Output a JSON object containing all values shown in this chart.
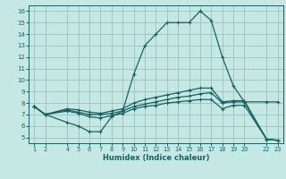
{
  "xlabel": "Humidex (Indice chaleur)",
  "bg_color": "#c5e8e5",
  "grid_color": "#9ec8c5",
  "line_color": "#1a6060",
  "xlim": [
    0.5,
    23.5
  ],
  "ylim": [
    4.5,
    16.5
  ],
  "xticks": [
    1,
    2,
    4,
    5,
    6,
    7,
    8,
    9,
    10,
    11,
    12,
    13,
    14,
    15,
    16,
    17,
    18,
    19,
    20,
    22,
    23
  ],
  "yticks": [
    5,
    6,
    7,
    8,
    9,
    10,
    11,
    12,
    13,
    14,
    15,
    16
  ],
  "line1_x": [
    1,
    2,
    4,
    5,
    6,
    7,
    8,
    9,
    10,
    11,
    12,
    13,
    14,
    15,
    16,
    17,
    18,
    19,
    20,
    22,
    23
  ],
  "line1_y": [
    7.7,
    7.0,
    6.3,
    6.0,
    5.5,
    5.5,
    6.8,
    7.3,
    10.5,
    13.0,
    14.0,
    15.0,
    15.0,
    15.0,
    16.0,
    15.2,
    12.0,
    9.5,
    8.1,
    4.85,
    4.75
  ],
  "line2_x": [
    1,
    2,
    4,
    5,
    6,
    7,
    8,
    9,
    10,
    11,
    12,
    13,
    14,
    15,
    16,
    17,
    18,
    19,
    20,
    22,
    23
  ],
  "line2_y": [
    7.7,
    7.0,
    7.4,
    7.2,
    7.0,
    7.0,
    7.1,
    7.3,
    7.7,
    7.9,
    8.1,
    8.3,
    8.5,
    8.6,
    8.8,
    8.9,
    8.0,
    8.1,
    8.1,
    8.1,
    8.1
  ],
  "line3_x": [
    1,
    2,
    4,
    5,
    6,
    7,
    8,
    9,
    10,
    11,
    12,
    13,
    14,
    15,
    16,
    17,
    18,
    19,
    20,
    22,
    23
  ],
  "line3_y": [
    7.7,
    7.0,
    7.5,
    7.4,
    7.2,
    7.1,
    7.3,
    7.5,
    8.0,
    8.3,
    8.5,
    8.7,
    8.9,
    9.1,
    9.3,
    9.3,
    8.1,
    8.2,
    8.2,
    4.85,
    4.75
  ],
  "line4_x": [
    1,
    2,
    4,
    5,
    6,
    7,
    8,
    9,
    10,
    11,
    12,
    13,
    14,
    15,
    16,
    17,
    18,
    19,
    20,
    22,
    23
  ],
  "line4_y": [
    7.7,
    7.0,
    7.3,
    7.1,
    6.8,
    6.7,
    6.9,
    7.1,
    7.5,
    7.7,
    7.8,
    8.0,
    8.1,
    8.2,
    8.3,
    8.3,
    7.5,
    7.8,
    7.8,
    4.85,
    4.75
  ]
}
